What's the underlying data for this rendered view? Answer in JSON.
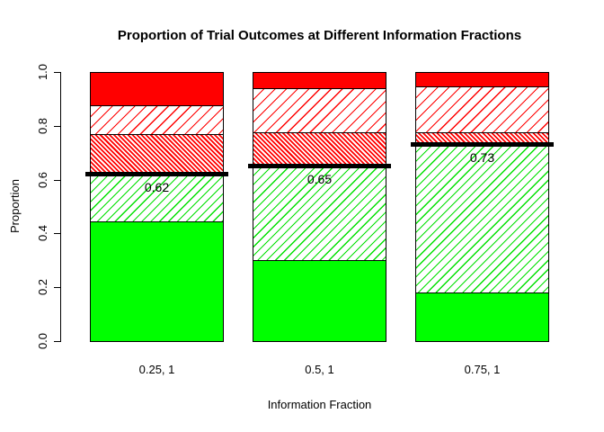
{
  "chart_data": {
    "type": "bar",
    "stacked": true,
    "title": "Proportion of Trial Outcomes at Different Information Fractions",
    "xlabel": "Information Fraction",
    "ylabel": "Proportion",
    "ylim": [
      0,
      1
    ],
    "y_ticks": [
      "0.0",
      "0.2",
      "0.4",
      "0.6",
      "0.8",
      "1.0"
    ],
    "categories": [
      "0.25, 1",
      "0.5, 1",
      "0.75, 1"
    ],
    "grid": false,
    "legend": "none",
    "series": [
      {
        "key": "green-solid",
        "name": "solid green segment",
        "pattern": "solid",
        "color": "#00FF00",
        "values": [
          0.445,
          0.3,
          0.18
        ]
      },
      {
        "key": "green-hatch",
        "name": "green diagonal-hatched segment",
        "pattern": "hatch-/",
        "color": "#00FF00",
        "values": [
          0.175,
          0.35,
          0.555
        ]
      },
      {
        "key": "red-dense",
        "name": "red dense-hatched segment",
        "pattern": "dense-hatch-\\",
        "color": "#FF0000",
        "values": [
          0.15,
          0.125,
          0.04
        ]
      },
      {
        "key": "red-sparse",
        "name": "red diagonal-hatched segment",
        "pattern": "hatch-/",
        "color": "#FF0000",
        "values": [
          0.105,
          0.165,
          0.17
        ]
      },
      {
        "key": "red-solid",
        "name": "solid red segment",
        "pattern": "solid",
        "color": "#FF0000",
        "values": [
          0.125,
          0.06,
          0.055
        ]
      }
    ],
    "threshold_lines": {
      "color": "#000000",
      "values": [
        0.62,
        0.65,
        0.73
      ],
      "labels": [
        "0.62",
        "0.65",
        "0.73"
      ]
    }
  },
  "colors": {
    "background": "#FFFFFF",
    "axis": "#000000",
    "text": "#000000",
    "solid_green": "#00FF00",
    "solid_red": "#FF0000"
  }
}
